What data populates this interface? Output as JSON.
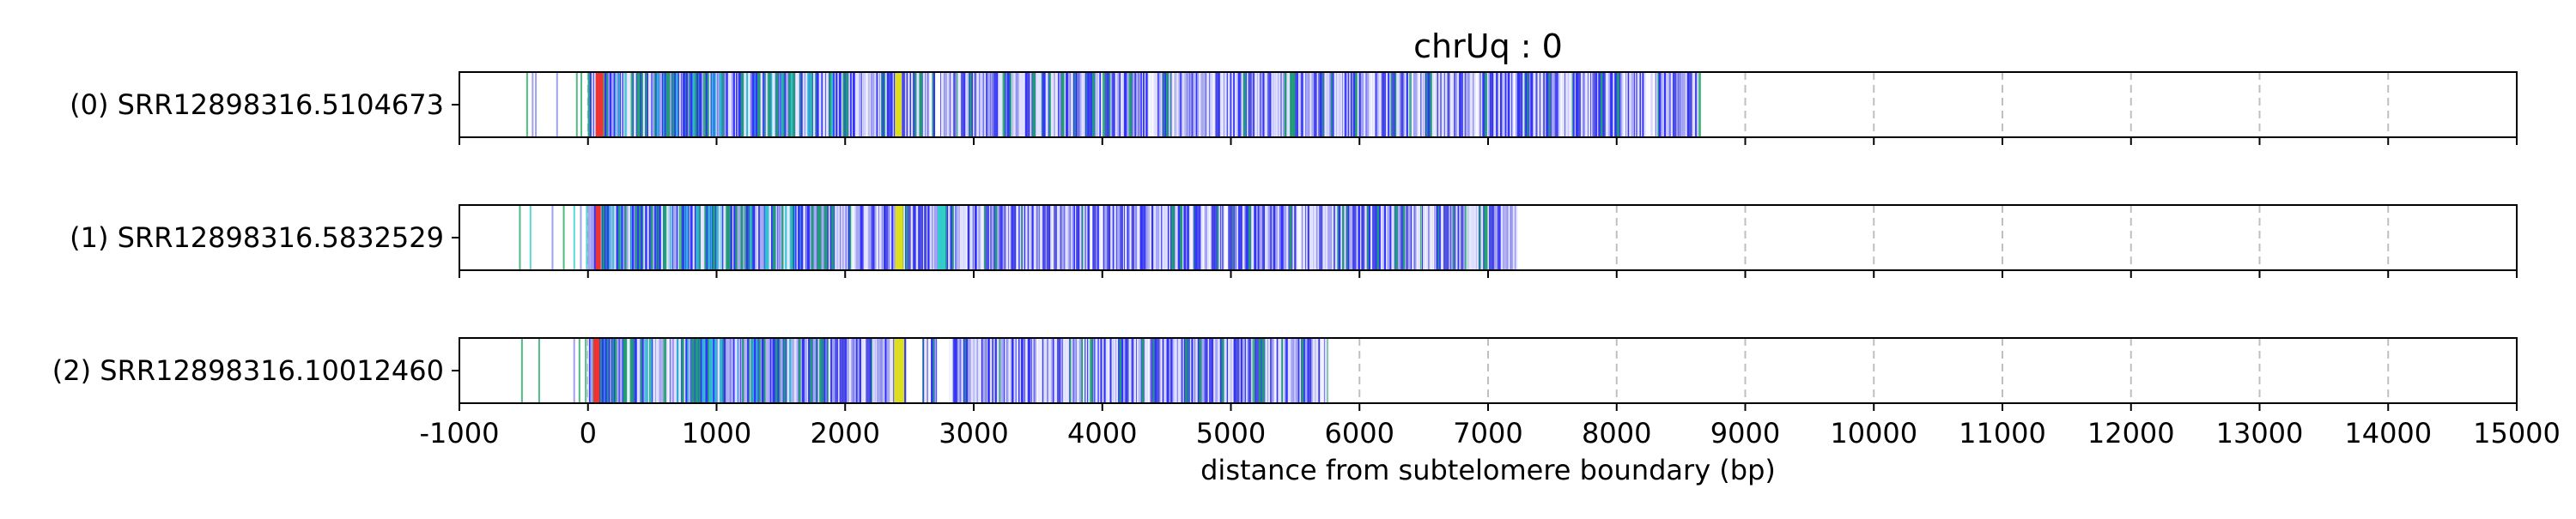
{
  "chart_data": {
    "type": "bar",
    "title": "chrUq : 0",
    "xlabel": "distance from subtelomere boundary (bp)",
    "xlim": [
      -1000,
      15000
    ],
    "xticks": [
      -1000,
      0,
      1000,
      2000,
      3000,
      4000,
      5000,
      6000,
      7000,
      8000,
      9000,
      10000,
      11000,
      12000,
      13000,
      14000,
      15000
    ],
    "xtick_labels": [
      "-1000",
      "0",
      "1000",
      "2000",
      "3000",
      "4000",
      "5000",
      "6000",
      "7000",
      "8000",
      "9000",
      "10000",
      "11000",
      "12000",
      "13000",
      "14000",
      "15000"
    ],
    "grid": {
      "x": true,
      "style": "dashed"
    },
    "colors": {
      "dominant": "#3333ff",
      "palette": [
        "#2a2aff",
        "#5555dd",
        "#22aa66",
        "#33cccc",
        "#dddd22",
        "#ee3333",
        "#bbbbee",
        "#ffffff"
      ]
    },
    "reads": [
      {
        "label": "(0) SRR12898316.5104673",
        "start": -480,
        "dense_start": 0,
        "end": 8650,
        "features": [
          {
            "pos": 60,
            "width": 60,
            "color": "#ee3333"
          },
          {
            "pos": 2390,
            "width": 50,
            "color": "#dddd22"
          },
          {
            "pos": 2700,
            "width": 40,
            "color": "#ffffff"
          }
        ]
      },
      {
        "label": "(1) SRR12898316.5832529",
        "start": -580,
        "dense_start": 0,
        "end": 7230,
        "features": [
          {
            "pos": 60,
            "width": 40,
            "color": "#ee3333"
          },
          {
            "pos": 2390,
            "width": 60,
            "color": "#dddd22"
          },
          {
            "pos": 2720,
            "width": 60,
            "color": "#33cccc"
          }
        ]
      },
      {
        "label": "(2) SRR12898316.10012460",
        "start": -520,
        "dense_start": 0,
        "end": 5750,
        "features": [
          {
            "pos": 40,
            "width": 50,
            "color": "#ee3333"
          },
          {
            "pos": 2380,
            "width": 80,
            "color": "#dddd22"
          },
          {
            "pos": 2480,
            "width": 120,
            "color": "#ffffff"
          },
          {
            "pos": 2720,
            "width": 90,
            "color": "#ffffff"
          }
        ]
      }
    ]
  }
}
